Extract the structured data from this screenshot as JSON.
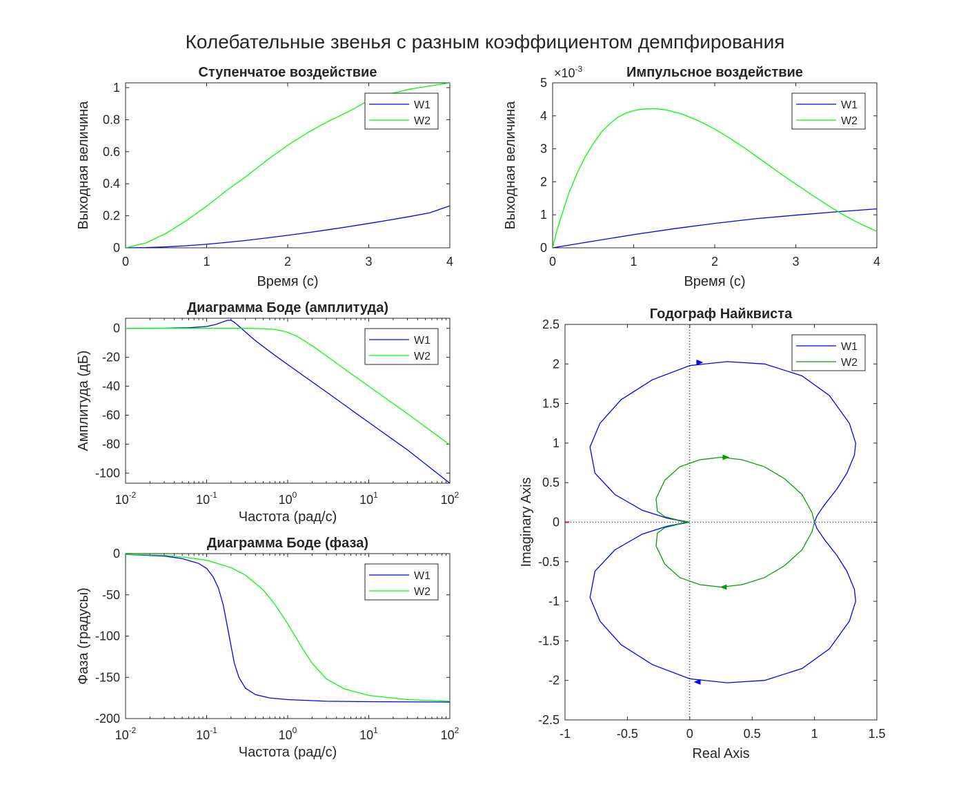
{
  "figure_title": "Колебательные звенья с разным коэффициентом демпфирования",
  "colors": {
    "W1": "#0000ff",
    "W2": "#00ff00",
    "W2_nyquist": "#00a000",
    "axis": "#262626",
    "critical_point": "#ff0000"
  },
  "chart_data": [
    {
      "id": "step",
      "type": "line",
      "title": "Ступенчатое воздействие",
      "xlabel": "Время (с)",
      "ylabel": "Выходная величина",
      "xlim": [
        0,
        4
      ],
      "ylim": [
        0,
        1.03
      ],
      "xticks": [
        0,
        1,
        2,
        3,
        4
      ],
      "xticklabels": [
        "0",
        "1",
        "2",
        "3",
        "4"
      ],
      "yticks": [
        0,
        0.2,
        0.4,
        0.6,
        0.8,
        1
      ],
      "yticklabels": [
        "0",
        "0.2",
        "0.4",
        "0.6",
        "0.8",
        "1"
      ],
      "legend": "top-right",
      "series": [
        {
          "name": "W1",
          "x": [
            0,
            0.25,
            0.5,
            0.75,
            1,
            1.25,
            1.5,
            1.75,
            2,
            2.25,
            2.5,
            2.75,
            3,
            3.25,
            3.5,
            3.75,
            4
          ],
          "y": [
            0,
            0.0015,
            0.006,
            0.013,
            0.022,
            0.034,
            0.047,
            0.062,
            0.078,
            0.095,
            0.113,
            0.132,
            0.152,
            0.173,
            0.195,
            0.218,
            0.262
          ]
        },
        {
          "name": "W2",
          "x": [
            0,
            0.25,
            0.5,
            0.75,
            1,
            1.25,
            1.5,
            1.75,
            2,
            2.25,
            2.5,
            2.75,
            3,
            3.25,
            3.5,
            3.75,
            4
          ],
          "y": [
            0,
            0.03,
            0.09,
            0.17,
            0.26,
            0.36,
            0.45,
            0.55,
            0.64,
            0.72,
            0.79,
            0.85,
            0.92,
            0.96,
            0.99,
            1.01,
            1.03
          ]
        }
      ]
    },
    {
      "id": "impulse",
      "type": "line",
      "title": "Импульсное воздействие",
      "xlabel": "Время (с)",
      "ylabel": "Выходная величина",
      "xlim": [
        0,
        4
      ],
      "ylim": [
        0,
        5
      ],
      "y_exponent": "-3",
      "xticks": [
        0,
        1,
        2,
        3,
        4
      ],
      "xticklabels": [
        "0",
        "1",
        "2",
        "3",
        "4"
      ],
      "yticks": [
        0,
        1,
        2,
        3,
        4,
        5
      ],
      "yticklabels": [
        "0",
        "1",
        "2",
        "3",
        "4",
        "5"
      ],
      "legend": "top-right",
      "series": [
        {
          "name": "W1",
          "x": [
            0,
            0.5,
            1,
            1.5,
            2,
            2.5,
            3,
            3.5,
            4
          ],
          "y": [
            0,
            0.2,
            0.4,
            0.58,
            0.74,
            0.88,
            0.99,
            1.09,
            1.18
          ]
        },
        {
          "name": "W2",
          "x": [
            0,
            0.05,
            0.1,
            0.2,
            0.3,
            0.4,
            0.5,
            0.6,
            0.7,
            0.8,
            0.9,
            1,
            1.1,
            1.25,
            1.4,
            1.6,
            1.8,
            2,
            2.2,
            2.4,
            2.6,
            2.8,
            3,
            3.2,
            3.4,
            3.6,
            3.8,
            4
          ],
          "y": [
            0,
            0.5,
            0.9,
            1.65,
            2.25,
            2.75,
            3.15,
            3.5,
            3.75,
            3.95,
            4.08,
            4.16,
            4.2,
            4.22,
            4.18,
            4.05,
            3.85,
            3.6,
            3.3,
            2.97,
            2.62,
            2.27,
            1.93,
            1.6,
            1.28,
            0.98,
            0.72,
            0.5
          ]
        }
      ]
    },
    {
      "id": "bode_mag",
      "type": "line",
      "title": "Диаграмма Боде (амплитуда)",
      "xlabel": "Частота (рад/с)",
      "ylabel": "Амплитуда (дБ)",
      "xscale": "log",
      "xlim": [
        0.01,
        100
      ],
      "ylim": [
        -107,
        7
      ],
      "xticks": [
        0.01,
        0.1,
        1,
        10,
        100
      ],
      "xtick_base": [
        "10",
        "10",
        "10",
        "10",
        "10"
      ],
      "xtick_exp": [
        "-2",
        "-1",
        "0",
        "1",
        "2"
      ],
      "yticks": [
        0,
        -20,
        -40,
        -60,
        -80,
        -100
      ],
      "yticklabels": [
        "0",
        "-20",
        "-40",
        "-60",
        "-80",
        "-100"
      ],
      "legend": "top-right",
      "series": [
        {
          "name": "W1",
          "x": [
            0.01,
            0.03,
            0.06,
            0.1,
            0.13,
            0.16,
            0.18,
            0.2,
            0.22,
            0.25,
            0.3,
            0.4,
            0.6,
            1,
            3,
            10,
            30,
            100
          ],
          "y": [
            0,
            0.1,
            0.4,
            1.3,
            2.7,
            4.5,
            5.5,
            5.6,
            4.2,
            1.5,
            -2.5,
            -8.5,
            -16,
            -25,
            -44,
            -65,
            -84,
            -107
          ]
        },
        {
          "name": "W2",
          "x": [
            0.01,
            0.1,
            0.3,
            0.5,
            0.7,
            0.9,
            1,
            1.3,
            1.6,
            2,
            3,
            5,
            10,
            30,
            100
          ],
          "y": [
            0,
            0,
            0,
            -0.2,
            -0.8,
            -2,
            -2.8,
            -5.5,
            -8.5,
            -12,
            -19,
            -28,
            -40,
            -59,
            -80.5
          ]
        }
      ]
    },
    {
      "id": "bode_phase",
      "type": "line",
      "title": "Диаграмма Боде (фаза)",
      "xlabel": "Частота (рад/с)",
      "ylabel": "Фаза (градусы)",
      "xscale": "log",
      "xlim": [
        0.01,
        100
      ],
      "ylim": [
        -200,
        0
      ],
      "xticks": [
        0.01,
        0.1,
        1,
        10,
        100
      ],
      "xtick_base": [
        "10",
        "10",
        "10",
        "10",
        "10"
      ],
      "xtick_exp": [
        "-2",
        "-1",
        "0",
        "1",
        "2"
      ],
      "yticks": [
        0,
        -50,
        -100,
        -150,
        -200
      ],
      "yticklabels": [
        "0",
        "-50",
        "-100",
        "-150",
        "-200"
      ],
      "legend": "top-right",
      "series": [
        {
          "name": "W1",
          "x": [
            0.01,
            0.03,
            0.05,
            0.08,
            0.1,
            0.12,
            0.14,
            0.16,
            0.18,
            0.2,
            0.22,
            0.25,
            0.3,
            0.4,
            0.6,
            1,
            3,
            10,
            100
          ],
          "y": [
            -1,
            -3,
            -6,
            -12,
            -18,
            -28,
            -42,
            -62,
            -88,
            -112,
            -133,
            -150,
            -163,
            -171,
            -175,
            -177,
            -179,
            -179.5,
            -180
          ]
        },
        {
          "name": "W2",
          "x": [
            0.01,
            0.03,
            0.06,
            0.1,
            0.2,
            0.3,
            0.5,
            0.7,
            1,
            1.5,
            2,
            3,
            5,
            10,
            30,
            100
          ],
          "y": [
            -1,
            -2,
            -5,
            -8,
            -17,
            -26,
            -44,
            -62,
            -85,
            -114,
            -133,
            -152,
            -164,
            -172,
            -177,
            -179
          ]
        }
      ]
    },
    {
      "id": "nyquist",
      "type": "line",
      "title": "Годограф Найквиста",
      "xlabel": "Real Axis",
      "ylabel": "Imaginary Axis",
      "xlim": [
        -1,
        1.5
      ],
      "ylim": [
        -2.5,
        2.5
      ],
      "xticks": [
        -1,
        -0.5,
        0,
        0.5,
        1,
        1.5
      ],
      "xticklabels": [
        "-1",
        "-0.5",
        "0",
        "0.5",
        "1",
        "1.5"
      ],
      "yticks": [
        2.5,
        2,
        1.5,
        1,
        0.5,
        0,
        -0.5,
        -1,
        -1.5,
        -2,
        -2.5
      ],
      "yticklabels": [
        "2.5",
        "2",
        "1.5",
        "1",
        "0.5",
        "0",
        "-0.5",
        "-1",
        "-1.5",
        "-2",
        "-2.5"
      ],
      "legend": "top-right",
      "critical_point": [
        -1,
        0
      ],
      "series": [
        {
          "name": "W1",
          "x": [
            1,
            1.02,
            1.08,
            1.18,
            1.26,
            1.32,
            1.33,
            1.28,
            1.12,
            0.9,
            0.6,
            0.3,
            0,
            -0.3,
            -0.55,
            -0.72,
            -0.8,
            -0.76,
            -0.6,
            -0.38,
            -0.18,
            -0.05,
            0
          ],
          "y": [
            0,
            0.08,
            0.22,
            0.42,
            0.62,
            0.85,
            1.0,
            1.25,
            1.6,
            1.85,
            2.0,
            2.03,
            1.98,
            1.8,
            1.55,
            1.25,
            0.95,
            0.62,
            0.35,
            0.15,
            0.05,
            0.01,
            0
          ],
          "arrows": [
            [
              0.07,
              2.02
            ],
            [
              0.07,
              -2.02
            ]
          ]
        },
        {
          "name": "W2",
          "x": [
            1,
            0.98,
            0.9,
            0.76,
            0.6,
            0.42,
            0.25,
            0.08,
            -0.08,
            -0.2,
            -0.27,
            -0.26,
            -0.2,
            -0.1,
            -0.03,
            0
          ],
          "y": [
            0,
            0.12,
            0.35,
            0.55,
            0.7,
            0.79,
            0.82,
            0.79,
            0.7,
            0.53,
            0.3,
            0.14,
            0.07,
            0.03,
            0.01,
            0
          ],
          "arrows": [
            [
              0.28,
              0.82
            ],
            [
              0.28,
              -0.82
            ]
          ]
        }
      ]
    }
  ]
}
